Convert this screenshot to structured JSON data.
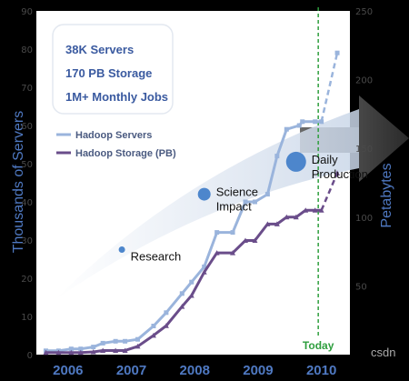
{
  "chart_data": {
    "type": "line",
    "stats": [
      "38K Servers",
      "170 PB Storage",
      "1M+ Monthly Jobs"
    ],
    "ylabel": "Thousands of Servers",
    "y2label": "Petabytes",
    "ylim": [
      0,
      90
    ],
    "y2lim": [
      0,
      250
    ],
    "yticks": [
      0,
      10,
      20,
      30,
      40,
      50,
      60,
      70,
      80,
      90
    ],
    "y2ticks": [
      50,
      100,
      150,
      200,
      250
    ],
    "xticks": [
      "2006",
      "2007",
      "2008",
      "2009",
      "2010"
    ],
    "xlim": [
      2005.55,
      2010.5
    ],
    "series": [
      {
        "name": "Hadoop Servers",
        "color": "#9ab4dc",
        "x": [
          2005.7,
          2005.9,
          2006.1,
          2006.25,
          2006.45,
          2006.6,
          2006.8,
          2006.95,
          2007.15,
          2007.4,
          2007.6,
          2007.85,
          2008.0,
          2008.2,
          2008.4,
          2008.65,
          2008.85,
          2009.0,
          2009.2,
          2009.35,
          2009.5,
          2009.7,
          2009.75,
          2009.95,
          2010.05
        ],
        "values": [
          1,
          1,
          1.5,
          1.5,
          2,
          3,
          3.5,
          3.5,
          4,
          7.5,
          11,
          16,
          19,
          23,
          32,
          32,
          40,
          40,
          42,
          52,
          59,
          60,
          61,
          61,
          61
        ]
      },
      {
        "name": "Hadoop Storage (PB)",
        "color": "#6a4d8a",
        "x": [
          2005.7,
          2005.9,
          2006.1,
          2006.25,
          2006.45,
          2006.6,
          2006.8,
          2006.95,
          2007.15,
          2007.4,
          2007.6,
          2007.85,
          2008.0,
          2008.2,
          2008.4,
          2008.65,
          2008.85,
          2009.0,
          2009.2,
          2009.35,
          2009.5,
          2009.65,
          2009.8,
          2009.95,
          2010.05
        ],
        "values": [
          1.5,
          1.5,
          1.5,
          1.5,
          2,
          3,
          3,
          3,
          6,
          14,
          21,
          35,
          43,
          60,
          74,
          74,
          83,
          83,
          95,
          95,
          100,
          100,
          105,
          105,
          105
        ]
      }
    ],
    "projections": [
      {
        "series": "Hadoop Servers",
        "x": [
          2010.05,
          2010.3
        ],
        "values": [
          61,
          79
        ]
      },
      {
        "series": "Hadoop Storage (PB)",
        "x": [
          2010.05,
          2010.3
        ],
        "values": [
          105,
          132
        ]
      }
    ],
    "today_x": 2010,
    "annotations": [
      {
        "label": "Research",
        "x": 2006.9,
        "y": 27.5,
        "marker_size": 1
      },
      {
        "label": "Science",
        "label2": "Impact",
        "x": 2008.2,
        "y": 42,
        "marker_size": 2
      },
      {
        "label": "Daily",
        "label2": "Production",
        "x": 2009.65,
        "y": 50.5,
        "marker_size": 3
      }
    ],
    "today_label": "Today",
    "grid": false,
    "legend": "top-left"
  },
  "watermark": "csdn",
  "colors": {
    "panel": "#ffffff",
    "today_line": "#2e9e3e",
    "bubble": "#4d86cc",
    "swoosh": "#d4deea",
    "arrow": "#3a3a3a"
  }
}
